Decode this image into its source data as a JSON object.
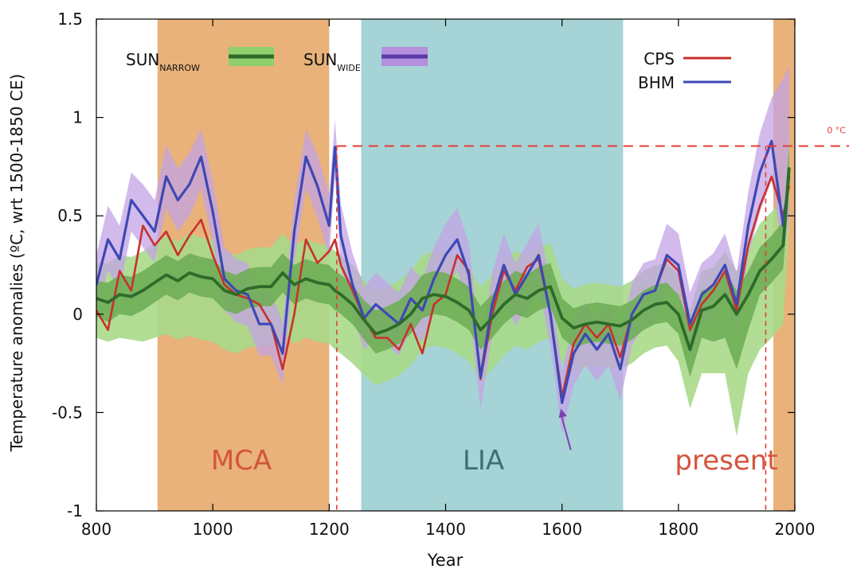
{
  "chart_data": {
    "type": "line",
    "xlabel": "Year",
    "ylabel": "Temperature anomalies (ºC, wrt 1500-1850 CE)",
    "xlim": [
      800,
      2000
    ],
    "ylim": [
      -1,
      1.5
    ],
    "xticks": [
      800,
      1000,
      1200,
      1400,
      1600,
      1800,
      2000
    ],
    "yticks": [
      -1,
      -0.5,
      0,
      0.5,
      1,
      1.5
    ],
    "ytick_labels": [
      "-1",
      "-0.5",
      "0",
      "0.5",
      "1",
      "1.5"
    ],
    "grid": false,
    "periods": [
      {
        "label": "MCA",
        "start": 905,
        "end": 1200,
        "color": "#e8b27a",
        "label_color": "#d4543a"
      },
      {
        "label": "LIA",
        "start": 1255,
        "end": 1705,
        "color": "#a6d3d6",
        "label_color": "#3f7073"
      },
      {
        "label": "present",
        "start": 1963,
        "end": 2000,
        "color": "#e8b27a",
        "label_color": "#d4543a"
      }
    ],
    "reference_line": {
      "label": "0 °C",
      "y": 0.855,
      "color": "#e53b35"
    },
    "reference_verticals": [
      1213,
      1950
    ],
    "arrow": {
      "from": [
        1615,
        -0.69
      ],
      "to": [
        1598,
        -0.48
      ],
      "color": "#7a3fb0"
    },
    "legend": {
      "placement": "top",
      "sun_narrow": {
        "base": "SUN",
        "sub": "NARROW",
        "color": "#2e6b2a",
        "band_color": "#8fcf6e"
      },
      "sun_wide": {
        "base": "SUN",
        "sub": "WIDE",
        "color": "#5a3aa8",
        "band_color": "#b490dd"
      },
      "cps": {
        "label": "CPS",
        "color": "#c8302c"
      },
      "bhm": {
        "label": "BHM",
        "color": "#3e48b5"
      }
    },
    "x": [
      800,
      820,
      840,
      860,
      880,
      900,
      920,
      940,
      960,
      980,
      1000,
      1020,
      1040,
      1060,
      1080,
      1100,
      1120,
      1140,
      1160,
      1180,
      1200,
      1210,
      1220,
      1240,
      1260,
      1280,
      1300,
      1320,
      1340,
      1360,
      1380,
      1400,
      1420,
      1440,
      1460,
      1480,
      1500,
      1520,
      1540,
      1560,
      1580,
      1600,
      1620,
      1640,
      1660,
      1680,
      1700,
      1720,
      1740,
      1760,
      1780,
      1800,
      1820,
      1840,
      1860,
      1880,
      1900,
      1920,
      1940,
      1960,
      1980,
      1990
    ],
    "series": [
      {
        "name": "CPS",
        "color": "#c8302c",
        "width": 2.6,
        "values": [
          0.02,
          -0.08,
          0.22,
          0.12,
          0.45,
          0.35,
          0.42,
          0.3,
          0.4,
          0.48,
          0.3,
          0.15,
          0.1,
          0.08,
          0.05,
          -0.05,
          -0.28,
          0.0,
          0.38,
          0.26,
          0.32,
          0.38,
          0.25,
          0.12,
          -0.02,
          -0.12,
          -0.12,
          -0.18,
          -0.05,
          -0.2,
          0.05,
          0.1,
          0.3,
          0.22,
          -0.33,
          0.0,
          0.22,
          0.12,
          0.24,
          0.28,
          0.0,
          -0.42,
          -0.15,
          -0.05,
          -0.12,
          -0.05,
          -0.22,
          0.0,
          0.1,
          0.12,
          0.28,
          0.22,
          -0.08,
          0.05,
          0.12,
          0.22,
          0.02,
          0.35,
          0.55,
          0.7,
          0.5,
          0.65
        ]
      },
      {
        "name": "BHM",
        "color": "#3e48b5",
        "width": 3.2,
        "values": [
          0.15,
          0.38,
          0.28,
          0.58,
          0.5,
          0.42,
          0.7,
          0.58,
          0.66,
          0.8,
          0.52,
          0.18,
          0.12,
          0.1,
          -0.05,
          -0.05,
          -0.2,
          0.42,
          0.8,
          0.65,
          0.45,
          0.85,
          0.4,
          0.15,
          -0.02,
          0.05,
          0.0,
          -0.05,
          0.08,
          0.02,
          0.18,
          0.3,
          0.38,
          0.2,
          -0.32,
          0.05,
          0.25,
          0.1,
          0.2,
          0.3,
          0.0,
          -0.45,
          -0.2,
          -0.1,
          -0.18,
          -0.1,
          -0.28,
          0.0,
          0.1,
          0.12,
          0.3,
          0.25,
          -0.05,
          0.1,
          0.15,
          0.25,
          0.05,
          0.45,
          0.72,
          0.88,
          0.45,
          0.7
        ]
      },
      {
        "name": "SUN_NARROW",
        "color": "#2e6b2a",
        "width": 3.8,
        "values": [
          0.08,
          0.06,
          0.1,
          0.09,
          0.12,
          0.16,
          0.2,
          0.17,
          0.21,
          0.19,
          0.18,
          0.12,
          0.1,
          0.13,
          0.14,
          0.14,
          0.21,
          0.15,
          0.18,
          0.16,
          0.15,
          0.12,
          0.1,
          0.05,
          -0.03,
          -0.1,
          -0.08,
          -0.05,
          0.0,
          0.08,
          0.1,
          0.09,
          0.06,
          0.02,
          -0.08,
          -0.02,
          0.05,
          0.1,
          0.08,
          0.12,
          0.14,
          -0.02,
          -0.07,
          -0.05,
          -0.04,
          -0.05,
          -0.06,
          -0.03,
          0.02,
          0.05,
          0.06,
          0.0,
          -0.18,
          0.02,
          0.04,
          0.1,
          0.0,
          0.1,
          0.22,
          0.28,
          0.35,
          0.74
        ]
      }
    ],
    "bands": [
      {
        "name": "SUN_NARROW outer",
        "color": "#a9d98a",
        "upper": [
          0.26,
          0.26,
          0.3,
          0.29,
          0.32,
          0.36,
          0.4,
          0.37,
          0.41,
          0.39,
          0.38,
          0.32,
          0.3,
          0.33,
          0.34,
          0.34,
          0.41,
          0.35,
          0.38,
          0.36,
          0.35,
          0.32,
          0.3,
          0.25,
          0.17,
          0.12,
          0.14,
          0.17,
          0.22,
          0.3,
          0.32,
          0.31,
          0.28,
          0.24,
          0.14,
          0.2,
          0.27,
          0.32,
          0.3,
          0.34,
          0.36,
          0.18,
          0.13,
          0.15,
          0.16,
          0.15,
          0.14,
          0.17,
          0.22,
          0.25,
          0.26,
          0.2,
          0.02,
          0.22,
          0.24,
          0.32,
          0.22,
          0.34,
          0.46,
          0.52,
          0.59,
          0.97
        ],
        "lower": [
          -0.12,
          -0.14,
          -0.12,
          -0.13,
          -0.14,
          -0.12,
          -0.1,
          -0.13,
          -0.11,
          -0.13,
          -0.14,
          -0.18,
          -0.2,
          -0.17,
          -0.16,
          -0.16,
          -0.09,
          -0.15,
          -0.12,
          -0.14,
          -0.15,
          -0.18,
          -0.2,
          -0.25,
          -0.31,
          -0.36,
          -0.34,
          -0.31,
          -0.26,
          -0.18,
          -0.16,
          -0.17,
          -0.2,
          -0.24,
          -0.34,
          -0.28,
          -0.21,
          -0.16,
          -0.18,
          -0.14,
          -0.12,
          -0.24,
          -0.29,
          -0.27,
          -0.26,
          -0.27,
          -0.28,
          -0.25,
          -0.2,
          -0.17,
          -0.16,
          -0.24,
          -0.48,
          -0.3,
          -0.3,
          -0.3,
          -0.62,
          -0.3,
          -0.18,
          -0.12,
          -0.05,
          0.44
        ]
      },
      {
        "name": "SUN_WIDE",
        "color": "#c3a3e6",
        "upper": [
          0.3,
          0.55,
          0.45,
          0.72,
          0.66,
          0.58,
          0.86,
          0.74,
          0.82,
          0.94,
          0.68,
          0.34,
          0.28,
          0.26,
          0.11,
          0.11,
          -0.04,
          0.58,
          0.94,
          0.81,
          0.61,
          0.99,
          0.56,
          0.31,
          0.14,
          0.21,
          0.16,
          0.11,
          0.24,
          0.18,
          0.34,
          0.46,
          0.54,
          0.36,
          -0.16,
          0.21,
          0.41,
          0.26,
          0.36,
          0.46,
          0.16,
          -0.29,
          -0.04,
          0.06,
          -0.02,
          0.06,
          -0.12,
          0.16,
          0.26,
          0.28,
          0.46,
          0.41,
          0.11,
          0.26,
          0.31,
          0.41,
          0.21,
          0.62,
          0.92,
          1.1,
          1.2,
          1.26
        ],
        "lower": [
          0.0,
          0.22,
          0.12,
          0.42,
          0.34,
          0.26,
          0.54,
          0.42,
          0.5,
          0.64,
          0.36,
          0.02,
          -0.04,
          -0.06,
          -0.21,
          -0.21,
          -0.36,
          0.26,
          0.64,
          0.49,
          0.29,
          0.7,
          0.24,
          -0.01,
          -0.18,
          -0.11,
          -0.16,
          -0.21,
          -0.08,
          -0.14,
          0.02,
          0.14,
          0.22,
          0.04,
          -0.48,
          -0.11,
          0.09,
          -0.06,
          0.04,
          0.14,
          -0.16,
          -0.61,
          -0.36,
          -0.26,
          -0.34,
          -0.26,
          -0.44,
          -0.16,
          -0.06,
          -0.04,
          0.14,
          0.09,
          -0.21,
          -0.06,
          -0.01,
          0.09,
          -0.11,
          0.3,
          0.52,
          0.68,
          0.3,
          0.5
        ]
      },
      {
        "name": "SUN_NARROW inner",
        "color": "#6fae56",
        "upper": [
          0.17,
          0.16,
          0.2,
          0.19,
          0.22,
          0.26,
          0.3,
          0.27,
          0.31,
          0.29,
          0.28,
          0.22,
          0.2,
          0.23,
          0.24,
          0.24,
          0.31,
          0.25,
          0.28,
          0.26,
          0.25,
          0.22,
          0.2,
          0.15,
          0.07,
          0.02,
          0.04,
          0.07,
          0.12,
          0.2,
          0.22,
          0.21,
          0.18,
          0.14,
          0.04,
          0.1,
          0.17,
          0.22,
          0.2,
          0.24,
          0.26,
          0.08,
          0.03,
          0.05,
          0.06,
          0.05,
          0.04,
          0.07,
          0.12,
          0.15,
          0.16,
          0.1,
          -0.06,
          0.12,
          0.14,
          0.22,
          0.12,
          0.22,
          0.34,
          0.4,
          0.47,
          0.86
        ],
        "lower": [
          -0.01,
          -0.04,
          0.0,
          -0.01,
          0.02,
          0.06,
          0.1,
          0.07,
          0.11,
          0.09,
          0.08,
          0.02,
          0.0,
          0.03,
          0.04,
          0.04,
          0.11,
          0.05,
          0.08,
          0.06,
          0.05,
          0.02,
          0.0,
          -0.05,
          -0.13,
          -0.2,
          -0.18,
          -0.15,
          -0.1,
          -0.02,
          0.0,
          -0.01,
          -0.04,
          -0.08,
          -0.18,
          -0.12,
          -0.05,
          0.0,
          -0.02,
          0.02,
          0.04,
          -0.12,
          -0.17,
          -0.15,
          -0.14,
          -0.15,
          -0.16,
          -0.13,
          -0.08,
          -0.05,
          -0.04,
          -0.1,
          -0.32,
          -0.12,
          -0.14,
          -0.12,
          -0.28,
          -0.08,
          0.1,
          0.16,
          0.23,
          0.62
        ]
      }
    ]
  }
}
